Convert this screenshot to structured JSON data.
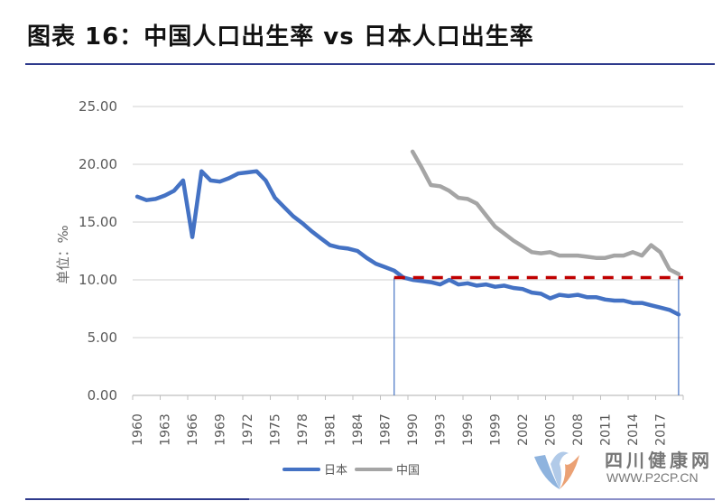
{
  "title": "图表 16：中国人口出生率 vs 日本人口出生率",
  "legend": [
    {
      "label": "日本",
      "color": "#4472c4"
    },
    {
      "label": "中国",
      "color": "#a5a5a5"
    }
  ],
  "watermark": {
    "name": "四川健康网",
    "url": "WWW.P2CP.CN"
  },
  "chart_data": {
    "type": "line",
    "title": "中国人口出生率 vs 日本人口出生率",
    "xlabel": "",
    "ylabel": "单位：‰",
    "ylim": [
      0,
      25
    ],
    "yticks": [
      "0.00",
      "5.00",
      "10.00",
      "15.00",
      "20.00",
      "25.00"
    ],
    "xtick_labels": [
      "1960",
      "1963",
      "1966",
      "1969",
      "1972",
      "1975",
      "1978",
      "1981",
      "1984",
      "1987",
      "1990",
      "1993",
      "1996",
      "1999",
      "2002",
      "2005",
      "2008",
      "2011",
      "2014",
      "2017"
    ],
    "grid": true,
    "legend_position": "bottom",
    "x": [
      1960,
      1961,
      1962,
      1963,
      1964,
      1965,
      1966,
      1967,
      1968,
      1969,
      1970,
      1971,
      1972,
      1973,
      1974,
      1975,
      1976,
      1977,
      1978,
      1979,
      1980,
      1981,
      1982,
      1983,
      1984,
      1985,
      1986,
      1987,
      1988,
      1989,
      1990,
      1991,
      1992,
      1993,
      1994,
      1995,
      1996,
      1997,
      1998,
      1999,
      2000,
      2001,
      2002,
      2003,
      2004,
      2005,
      2006,
      2007,
      2008,
      2009,
      2010,
      2011,
      2012,
      2013,
      2014,
      2015,
      2016,
      2017,
      2018,
      2019
    ],
    "series": [
      {
        "name": "日本",
        "color": "#4472c4",
        "values": [
          17.2,
          16.9,
          17.0,
          17.3,
          17.7,
          18.6,
          13.7,
          19.4,
          18.6,
          18.5,
          18.8,
          19.2,
          19.3,
          19.4,
          18.6,
          17.1,
          16.3,
          15.5,
          14.9,
          14.2,
          13.6,
          13.0,
          12.8,
          12.7,
          12.5,
          11.9,
          11.4,
          11.1,
          10.8,
          10.2,
          10.0,
          9.9,
          9.8,
          9.6,
          10.0,
          9.6,
          9.7,
          9.5,
          9.6,
          9.4,
          9.5,
          9.3,
          9.2,
          8.9,
          8.8,
          8.4,
          8.7,
          8.6,
          8.7,
          8.5,
          8.5,
          8.3,
          8.2,
          8.2,
          8.0,
          8.0,
          7.8,
          7.6,
          7.4,
          7.0
        ]
      },
      {
        "name": "中国",
        "color": "#a5a5a5",
        "values": [
          null,
          null,
          null,
          null,
          null,
          null,
          null,
          null,
          null,
          null,
          null,
          null,
          null,
          null,
          null,
          null,
          null,
          null,
          null,
          null,
          null,
          null,
          null,
          null,
          null,
          null,
          null,
          null,
          null,
          null,
          21.1,
          19.7,
          18.2,
          18.1,
          17.7,
          17.1,
          17.0,
          16.6,
          15.6,
          14.6,
          14.0,
          13.4,
          12.9,
          12.4,
          12.3,
          12.4,
          12.1,
          12.1,
          12.1,
          12.0,
          11.9,
          11.9,
          12.1,
          12.1,
          12.4,
          12.1,
          13.0,
          12.4,
          10.9,
          10.5
        ]
      }
    ],
    "annotations": [
      {
        "type": "dashed-hline",
        "y": 10.2,
        "x_from": 1988,
        "x_to": 2019,
        "color": "#c00000"
      },
      {
        "type": "vline",
        "x": 1988,
        "color": "#4472c4"
      },
      {
        "type": "vline",
        "x": 2019,
        "color": "#4472c4"
      }
    ]
  }
}
